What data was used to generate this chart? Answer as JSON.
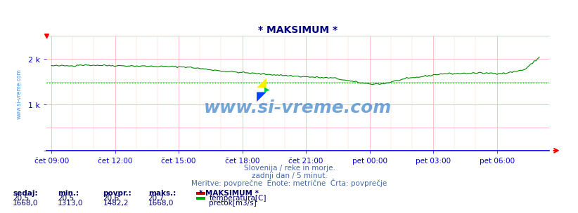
{
  "title": "* MAKSIMUM *",
  "background_color": "#ffffff",
  "plot_bg_color": "#ffffff",
  "title_color": "#000080",
  "text_color": "#4466aa",
  "axis_color": "#0000ff",
  "watermark_text": "www.si-vreme.com",
  "watermark_color": "#4488cc",
  "subtitle1": "Slovenija / reke in morje.",
  "subtitle2": "zadnji dan / 5 minut.",
  "subtitle3": "Meritve: povprečne  Enote: metrične  Črta: povprečje",
  "x_ticks_labels": [
    "čet 09:00",
    "čet 12:00",
    "čet 15:00",
    "čet 18:00",
    "čet 21:00",
    "pet 00:00",
    "pet 03:00",
    "pet 06:00"
  ],
  "x_ticks_pos": [
    0.0,
    0.1304,
    0.2609,
    0.3913,
    0.5217,
    0.6522,
    0.7826,
    0.913
  ],
  "ylim": [
    0,
    2500
  ],
  "yticks": [
    0,
    1000,
    2000
  ],
  "ytick_labels": [
    "",
    "1 k",
    "2 k"
  ],
  "legend_title": "* MAKSIMUM *",
  "legend_items": [
    {
      "label": "temperatura[C]",
      "color": "#cc0000"
    },
    {
      "label": "pretok[m3/s]",
      "color": "#00aa00"
    }
  ],
  "table_headers": [
    "sedaj:",
    "min.:",
    "povpr.:",
    "maks.:"
  ],
  "table_rows": [
    [
      "20,5",
      "20,5",
      "20,6",
      "20,7"
    ],
    [
      "1668,0",
      "1313,0",
      "1482,2",
      "1668,0"
    ]
  ],
  "avg_line_value_flow": 1482.2,
  "avg_line_color": "#00cc00"
}
